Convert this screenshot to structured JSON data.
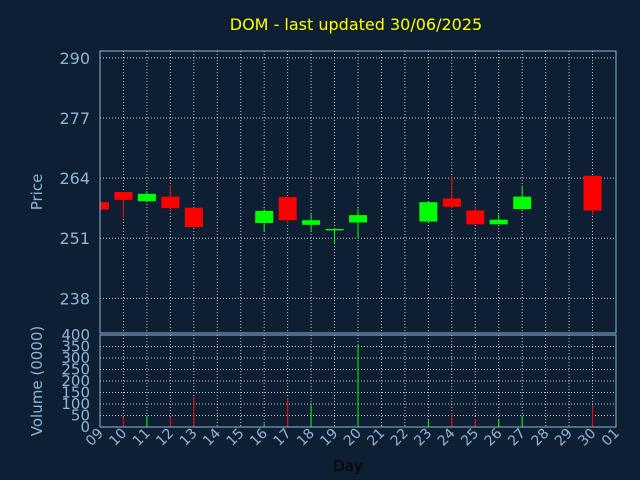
{
  "chart_data": {
    "type": "candlestick",
    "title": "DOM - last updated 30/06/2025",
    "price_axis": {
      "label": "Price",
      "ticks": [
        238,
        251,
        264,
        277,
        290
      ],
      "ylim": [
        230.5,
        291.5
      ]
    },
    "volume_axis": {
      "label": "Volume (0000)",
      "ticks": [
        0,
        50,
        100,
        150,
        200,
        250,
        300,
        350,
        400
      ],
      "ylim": [
        0,
        400
      ]
    },
    "xlabel": "Day",
    "x_ticks": [
      "09",
      "10",
      "11",
      "12",
      "13",
      "14",
      "15",
      "16",
      "17",
      "18",
      "19",
      "20",
      "21",
      "22",
      "23",
      "24",
      "25",
      "26",
      "27",
      "28",
      "29",
      "30",
      "01"
    ],
    "grid": true,
    "colors": {
      "up": "#00ff00",
      "down": "#ff0000",
      "background": "#0f1f33",
      "title": "#ffff00",
      "axis_text": "#8fb4d6",
      "grid": "#c8c8c8"
    },
    "candles": [
      {
        "day": "09",
        "open": 258.8,
        "high": 258.8,
        "low": 257.2,
        "close": 257.2,
        "volume": 0
      },
      {
        "day": "10",
        "open": 261.0,
        "high": 261.0,
        "low": 255.5,
        "close": 259.3,
        "volume": 45
      },
      {
        "day": "11",
        "open": 259.0,
        "high": 261.2,
        "low": 258.8,
        "close": 260.6,
        "volume": 50
      },
      {
        "day": "12",
        "open": 260.0,
        "high": 262.4,
        "low": 256.9,
        "close": 257.5,
        "volume": 45
      },
      {
        "day": "13",
        "open": 257.6,
        "high": 257.6,
        "low": 253.2,
        "close": 253.4,
        "volume": 130
      },
      {
        "day": "16",
        "open": 254.3,
        "high": 257.3,
        "low": 252.5,
        "close": 256.9,
        "volume": 15
      },
      {
        "day": "17",
        "open": 259.9,
        "high": 259.9,
        "low": 254.2,
        "close": 254.9,
        "volume": 125
      },
      {
        "day": "18",
        "open": 253.9,
        "high": 256.2,
        "low": 252.6,
        "close": 254.9,
        "volume": 100
      },
      {
        "day": "19",
        "open": 252.7,
        "high": 253.2,
        "low": 250.0,
        "close": 253.0,
        "volume": 0
      },
      {
        "day": "20",
        "open": 254.4,
        "high": 257.4,
        "low": 251.0,
        "close": 256.0,
        "volume": 360
      },
      {
        "day": "23",
        "open": 254.6,
        "high": 258.8,
        "low": 254.6,
        "close": 258.8,
        "volume": 30
      },
      {
        "day": "24",
        "open": 259.6,
        "high": 264.5,
        "low": 257.5,
        "close": 257.8,
        "volume": 60
      },
      {
        "day": "25",
        "open": 257.0,
        "high": 257.8,
        "low": 254.0,
        "close": 254.0,
        "volume": 35
      },
      {
        "day": "26",
        "open": 254.0,
        "high": 256.1,
        "low": 254.0,
        "close": 255.0,
        "volume": 35
      },
      {
        "day": "27",
        "open": 257.3,
        "high": 262.4,
        "low": 257.2,
        "close": 260.0,
        "volume": 50
      },
      {
        "day": "30",
        "open": 264.5,
        "high": 264.5,
        "low": 256.0,
        "close": 257.0,
        "volume": 95
      }
    ]
  }
}
